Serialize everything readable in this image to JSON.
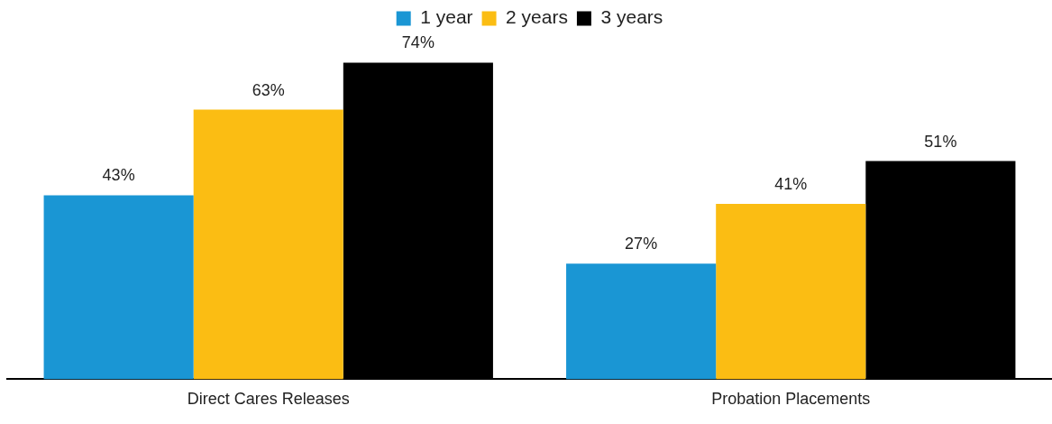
{
  "chart_data": {
    "type": "bar",
    "categories": [
      "Direct Cares Releases",
      "Probation Placements"
    ],
    "series": [
      {
        "name": "1 year",
        "color": "#1a96d4",
        "values": [
          43,
          27
        ],
        "value_labels": [
          "43%",
          "27%"
        ]
      },
      {
        "name": "2 years",
        "color": "#fbbd13",
        "values": [
          63,
          41
        ],
        "value_labels": [
          "63%",
          "41%"
        ]
      },
      {
        "name": "3 years",
        "color": "#000000",
        "values": [
          74,
          51
        ],
        "value_labels": [
          "74%",
          "51%"
        ]
      }
    ],
    "grid": false,
    "legend": "top"
  }
}
